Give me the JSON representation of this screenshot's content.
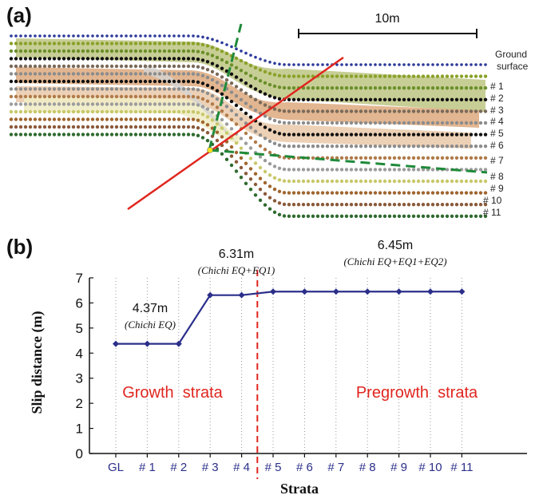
{
  "panel_a": {
    "label": "(a)",
    "scale_bar_label": "10m",
    "ground_surface_label": [
      "Ground",
      "surface"
    ],
    "strata_labels": [
      "# 1",
      "# 2",
      "# 3",
      "# 4",
      "# 5",
      "# 6",
      "# 7",
      "# 8",
      "# 9",
      "# 10",
      "# 11"
    ]
  },
  "panel_b": {
    "label": "(b)"
  },
  "colors": {
    "series": "#2b2f8a",
    "fault": "#e0261f",
    "region_text": "#e0261f",
    "grid": "#999999",
    "fault_dashed_green": "#1f8a3a",
    "ground_surface_dots": "#2c3a9a"
  },
  "chart_data": {
    "type": "line",
    "categories": [
      "GL",
      "# 1",
      "# 2",
      "# 3",
      "# 4",
      "# 5",
      "# 6",
      "# 7",
      "# 8",
      "# 9",
      "# 10",
      "# 11"
    ],
    "series": [
      {
        "values": [
          4.37,
          4.37,
          4.37,
          6.31,
          6.31,
          6.45,
          6.45,
          6.45,
          6.45,
          6.45,
          6.45,
          6.45
        ]
      }
    ],
    "xlabel": "Strata",
    "ylabel": "Slip distance (m)",
    "ylim": [
      0,
      7
    ],
    "yticks": [
      0,
      1,
      2,
      3,
      4,
      5,
      6,
      7
    ],
    "grid": "vertical dotted",
    "divider_between": [
      "# 4",
      "# 5"
    ],
    "annotations": [
      {
        "value": "4.37m",
        "note": "(Chichi EQ)"
      },
      {
        "value": "6.31m",
        "note": "(Chichi EQ+EQ1)"
      },
      {
        "value": "6.45m",
        "note": "(Chichi EQ+EQ1+EQ2)"
      }
    ],
    "regions": [
      "Growth  strata",
      "Pregrowth  strata"
    ]
  }
}
